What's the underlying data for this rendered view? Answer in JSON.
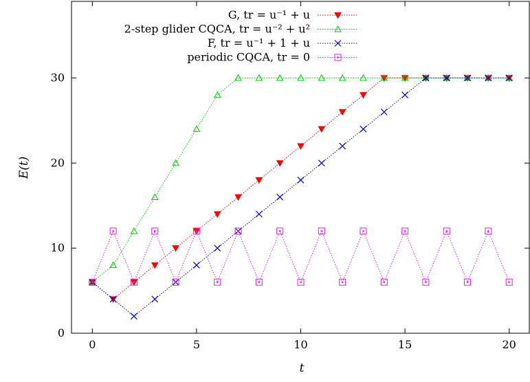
{
  "chart_data": {
    "type": "line",
    "xlabel": "t",
    "ylabel": "E(t)",
    "xlim": [
      -1,
      21
    ],
    "ylim": [
      0,
      39
    ],
    "xticks": [
      0,
      5,
      10,
      15,
      20
    ],
    "yticks": [
      0,
      10,
      20,
      30
    ],
    "grid": false,
    "legend_position": "top-center",
    "series": [
      {
        "name": "G, tr = u⁻¹ + u",
        "color": "#ff0000",
        "marker": "triangle-down",
        "x": [
          0,
          1,
          2,
          3,
          4,
          5,
          6,
          7,
          8,
          9,
          10,
          11,
          12,
          13,
          14,
          15,
          16,
          17,
          18,
          19,
          20
        ],
        "y": [
          6,
          4,
          6,
          8,
          10,
          12,
          14,
          16,
          18,
          20,
          22,
          24,
          26,
          28,
          30,
          30,
          30,
          30,
          30,
          30,
          30
        ]
      },
      {
        "name": "2-step glider CQCA, tr = u⁻² + u²",
        "color": "#00cc00",
        "marker": "triangle-up",
        "x": [
          0,
          1,
          2,
          3,
          4,
          5,
          6,
          7,
          8,
          9,
          10,
          11,
          12,
          13,
          14,
          15,
          16,
          17,
          18,
          19,
          20
        ],
        "y": [
          6,
          8,
          12,
          16,
          20,
          24,
          28,
          30,
          30,
          30,
          30,
          30,
          30,
          30,
          30,
          30,
          30,
          30,
          30,
          30,
          30
        ]
      },
      {
        "name": "F, tr = u⁻¹ + 1 + u",
        "color": "#0000cc",
        "marker": "x",
        "x": [
          0,
          1,
          2,
          3,
          4,
          5,
          6,
          7,
          8,
          9,
          10,
          11,
          12,
          13,
          14,
          15,
          16,
          17,
          18,
          19,
          20
        ],
        "y": [
          6,
          4,
          2,
          4,
          6,
          8,
          10,
          12,
          14,
          16,
          18,
          20,
          22,
          24,
          26,
          28,
          30,
          30,
          30,
          30,
          30
        ]
      },
      {
        "name": "periodic CQCA, tr = 0",
        "color": "#e020e0",
        "marker": "square-dot",
        "x": [
          0,
          1,
          2,
          3,
          4,
          5,
          6,
          7,
          8,
          9,
          10,
          11,
          12,
          13,
          14,
          15,
          16,
          17,
          18,
          19,
          20
        ],
        "y": [
          6,
          12,
          6,
          12,
          6,
          12,
          6,
          12,
          6,
          12,
          6,
          12,
          6,
          12,
          6,
          12,
          6,
          12,
          6,
          12,
          6
        ]
      }
    ]
  }
}
